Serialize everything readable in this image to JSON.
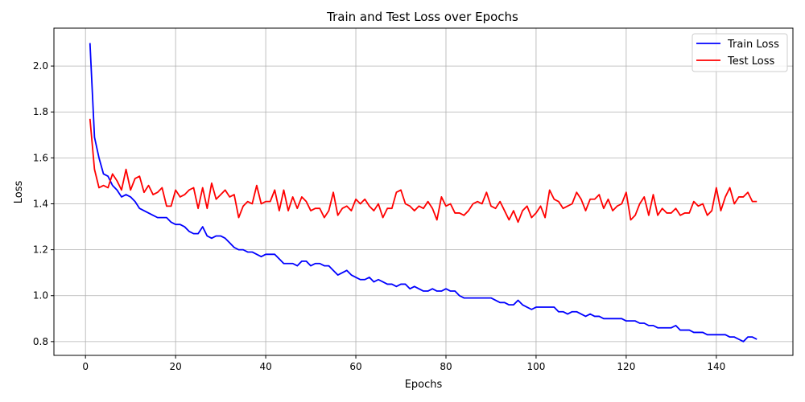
{
  "chart_data": {
    "type": "line",
    "title": "Train and Test Loss over Epochs",
    "xlabel": "Epochs",
    "ylabel": "Loss",
    "xlim": [
      -7,
      157
    ],
    "ylim": [
      0.74,
      2.165
    ],
    "xticks": [
      0,
      20,
      40,
      60,
      80,
      100,
      120,
      140
    ],
    "yticks": [
      0.8,
      1.0,
      1.2,
      1.4,
      1.6,
      1.8,
      2.0
    ],
    "xtick_labels": [
      "0",
      "20",
      "40",
      "60",
      "80",
      "100",
      "120",
      "140"
    ],
    "ytick_labels": [
      "0.8",
      "1.0",
      "1.2",
      "1.4",
      "1.6",
      "1.8",
      "2.0"
    ],
    "grid": true,
    "legend_position": "top-right",
    "x_start": 1,
    "series": [
      {
        "name": "Train Loss",
        "color": "#0000ff",
        "values": [
          2.1,
          1.69,
          1.6,
          1.53,
          1.52,
          1.48,
          1.46,
          1.43,
          1.44,
          1.43,
          1.41,
          1.38,
          1.37,
          1.36,
          1.35,
          1.34,
          1.34,
          1.34,
          1.32,
          1.31,
          1.31,
          1.3,
          1.28,
          1.27,
          1.27,
          1.3,
          1.26,
          1.25,
          1.26,
          1.26,
          1.25,
          1.23,
          1.21,
          1.2,
          1.2,
          1.19,
          1.19,
          1.18,
          1.17,
          1.18,
          1.18,
          1.18,
          1.16,
          1.14,
          1.14,
          1.14,
          1.13,
          1.15,
          1.15,
          1.13,
          1.14,
          1.14,
          1.13,
          1.13,
          1.11,
          1.09,
          1.1,
          1.11,
          1.09,
          1.08,
          1.07,
          1.07,
          1.08,
          1.06,
          1.07,
          1.06,
          1.05,
          1.05,
          1.04,
          1.05,
          1.05,
          1.03,
          1.04,
          1.03,
          1.02,
          1.02,
          1.03,
          1.02,
          1.02,
          1.03,
          1.02,
          1.02,
          1.0,
          0.99,
          0.99,
          0.99,
          0.99,
          0.99,
          0.99,
          0.99,
          0.98,
          0.97,
          0.97,
          0.96,
          0.96,
          0.98,
          0.96,
          0.95,
          0.94,
          0.95,
          0.95,
          0.95,
          0.95,
          0.95,
          0.93,
          0.93,
          0.92,
          0.93,
          0.93,
          0.92,
          0.91,
          0.92,
          0.91,
          0.91,
          0.9,
          0.9,
          0.9,
          0.9,
          0.9,
          0.89,
          0.89,
          0.89,
          0.88,
          0.88,
          0.87,
          0.87,
          0.86,
          0.86,
          0.86,
          0.86,
          0.87,
          0.85,
          0.85,
          0.85,
          0.84,
          0.84,
          0.84,
          0.83,
          0.83,
          0.83,
          0.83,
          0.83,
          0.82,
          0.82,
          0.81,
          0.8,
          0.82,
          0.82,
          0.81
        ]
      },
      {
        "name": "Test Loss",
        "color": "#ff0000",
        "values": [
          1.77,
          1.55,
          1.47,
          1.48,
          1.47,
          1.53,
          1.5,
          1.46,
          1.55,
          1.46,
          1.51,
          1.52,
          1.45,
          1.48,
          1.44,
          1.45,
          1.47,
          1.39,
          1.39,
          1.46,
          1.43,
          1.44,
          1.46,
          1.47,
          1.38,
          1.47,
          1.38,
          1.49,
          1.42,
          1.44,
          1.46,
          1.43,
          1.44,
          1.34,
          1.39,
          1.41,
          1.4,
          1.48,
          1.4,
          1.41,
          1.41,
          1.46,
          1.37,
          1.46,
          1.37,
          1.43,
          1.38,
          1.43,
          1.41,
          1.37,
          1.38,
          1.38,
          1.34,
          1.37,
          1.45,
          1.35,
          1.38,
          1.39,
          1.37,
          1.42,
          1.4,
          1.42,
          1.39,
          1.37,
          1.4,
          1.34,
          1.38,
          1.38,
          1.45,
          1.46,
          1.4,
          1.39,
          1.37,
          1.39,
          1.38,
          1.41,
          1.38,
          1.33,
          1.43,
          1.39,
          1.4,
          1.36,
          1.36,
          1.35,
          1.37,
          1.4,
          1.41,
          1.4,
          1.45,
          1.39,
          1.38,
          1.41,
          1.37,
          1.33,
          1.37,
          1.32,
          1.37,
          1.39,
          1.34,
          1.36,
          1.39,
          1.34,
          1.46,
          1.42,
          1.41,
          1.38,
          1.39,
          1.4,
          1.45,
          1.42,
          1.37,
          1.42,
          1.42,
          1.44,
          1.38,
          1.42,
          1.37,
          1.39,
          1.4,
          1.45,
          1.33,
          1.35,
          1.4,
          1.43,
          1.35,
          1.44,
          1.35,
          1.38,
          1.36,
          1.36,
          1.38,
          1.35,
          1.36,
          1.36,
          1.41,
          1.39,
          1.4,
          1.35,
          1.37,
          1.47,
          1.37,
          1.43,
          1.47,
          1.4,
          1.43,
          1.43,
          1.45,
          1.41,
          1.41
        ]
      }
    ]
  }
}
